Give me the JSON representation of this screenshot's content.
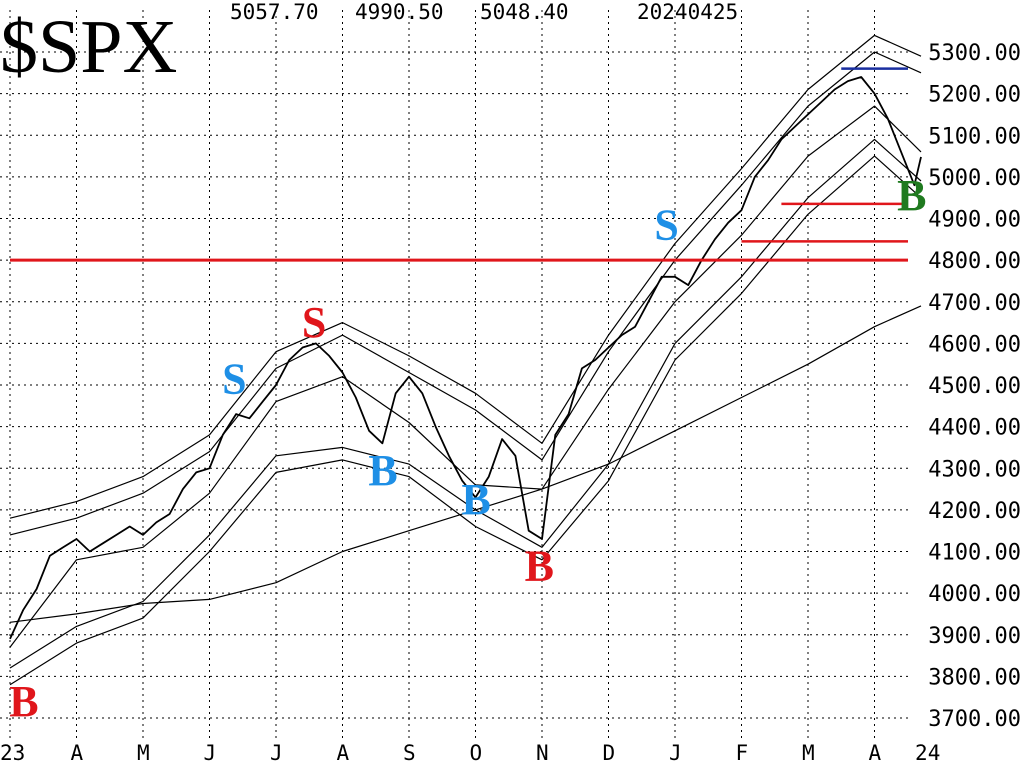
{
  "header": {
    "symbol": "$SPX",
    "high": "5057.70",
    "low": "4990.50",
    "close": "5048.40",
    "date": "20240425"
  },
  "colors": {
    "price": "#000000",
    "grid": "#000000",
    "red_line": "#e0161b",
    "blue_line": "#1a2fa0",
    "signal_red": "#e0161b",
    "signal_blue": "#1e8fe6",
    "signal_green": "#1f7a1f"
  },
  "chart_data": {
    "type": "line",
    "y_tick_labels": [
      "5300.00",
      "5200.00",
      "5100.00",
      "5000.00",
      "4900.00",
      "4800.00",
      "4700.00",
      "4600.00",
      "4500.00",
      "4400.00",
      "4300.00",
      "4200.00",
      "4100.00",
      "4000.00",
      "3900.00",
      "3800.00",
      "3700.00"
    ],
    "x_tick_labels": [
      "23",
      "A",
      "M",
      "J",
      "J",
      "A",
      "S",
      "O",
      "N",
      "D",
      "J",
      "F",
      "M",
      "A",
      "24"
    ],
    "ylim": [
      3660,
      5380
    ],
    "grid": true,
    "x_months": [
      0,
      1,
      2,
      3,
      4,
      5,
      6,
      7,
      8,
      9,
      10,
      11,
      12,
      13,
      13.7
    ],
    "series": [
      {
        "key": "price",
        "x": [
          0,
          0.2,
          0.4,
          0.6,
          0.8,
          1,
          1.2,
          1.4,
          1.6,
          1.8,
          2,
          2.2,
          2.4,
          2.6,
          2.8,
          3,
          3.2,
          3.4,
          3.6,
          3.8,
          4,
          4.2,
          4.4,
          4.6,
          4.8,
          5,
          5.2,
          5.4,
          5.6,
          5.8,
          6,
          6.2,
          6.4,
          6.6,
          6.8,
          7,
          7.2,
          7.4,
          7.6,
          7.8,
          8,
          8.2,
          8.4,
          8.6,
          8.8,
          9,
          9.2,
          9.4,
          9.6,
          9.8,
          10,
          10.2,
          10.4,
          10.6,
          10.8,
          11,
          11.2,
          11.4,
          11.6,
          11.8,
          12,
          12.2,
          12.4,
          12.6,
          12.8,
          13,
          13.2,
          13.4,
          13.6,
          13.7
        ],
        "values": [
          3890,
          3960,
          4010,
          4090,
          4110,
          4130,
          4100,
          4120,
          4140,
          4160,
          4140,
          4170,
          4190,
          4250,
          4290,
          4300,
          4380,
          4430,
          4420,
          4460,
          4500,
          4560,
          4590,
          4600,
          4570,
          4530,
          4470,
          4390,
          4360,
          4480,
          4520,
          4480,
          4400,
          4330,
          4270,
          4230,
          4280,
          4370,
          4330,
          4150,
          4130,
          4380,
          4430,
          4540,
          4560,
          4590,
          4620,
          4640,
          4700,
          4760,
          4760,
          4740,
          4800,
          4850,
          4890,
          4920,
          5000,
          5040,
          5090,
          5120,
          5150,
          5180,
          5210,
          5230,
          5240,
          5200,
          5140,
          5060,
          4980,
          5048
        ]
      },
      {
        "key": "ma_long",
        "x": [
          0,
          1,
          2,
          3,
          4,
          5,
          6,
          7,
          8,
          9,
          10,
          11,
          12,
          13,
          13.7
        ],
        "values": [
          3930,
          3950,
          3975,
          3985,
          4025,
          4100,
          4150,
          4200,
          4250,
          4310,
          4390,
          4470,
          4550,
          4640,
          4690
        ]
      },
      {
        "key": "ma_mid",
        "x": [
          0,
          1,
          2,
          3,
          4,
          5,
          6,
          7,
          8,
          9,
          10,
          11,
          12,
          13,
          13.7
        ],
        "values": [
          3870,
          4080,
          4110,
          4240,
          4460,
          4520,
          4410,
          4260,
          4250,
          4490,
          4700,
          4860,
          5050,
          5170,
          5060
        ]
      },
      {
        "key": "band_u1",
        "x": [
          0,
          1,
          2,
          3,
          4,
          5,
          6,
          7,
          8,
          9,
          10,
          11,
          12,
          13,
          13.7
        ],
        "values": [
          4140,
          4180,
          4240,
          4340,
          4540,
          4620,
          4530,
          4440,
          4320,
          4580,
          4800,
          4980,
          5170,
          5300,
          5250
        ]
      },
      {
        "key": "band_u2",
        "x": [
          0,
          1,
          2,
          3,
          4,
          5,
          6,
          7,
          8,
          9,
          10,
          11,
          12,
          13,
          13.7
        ],
        "values": [
          4180,
          4220,
          4280,
          4380,
          4580,
          4650,
          4570,
          4480,
          4360,
          4620,
          4840,
          5020,
          5210,
          5340,
          5290
        ]
      },
      {
        "key": "band_l1",
        "x": [
          0,
          1,
          2,
          3,
          4,
          5,
          6,
          7,
          8,
          9,
          10,
          11,
          12,
          13,
          13.7
        ],
        "values": [
          3820,
          3920,
          3980,
          4140,
          4330,
          4350,
          4310,
          4200,
          4110,
          4310,
          4600,
          4760,
          4950,
          5090,
          4990
        ]
      },
      {
        "key": "band_l2",
        "x": [
          0,
          1,
          2,
          3,
          4,
          5,
          6,
          7,
          8,
          9,
          10,
          11,
          12,
          13,
          13.7
        ],
        "values": [
          3780,
          3880,
          3940,
          4100,
          4290,
          4320,
          4280,
          4160,
          4080,
          4270,
          4560,
          4720,
          4910,
          5050,
          4950
        ]
      }
    ],
    "horizontal_lines": [
      {
        "color_key": "red_line",
        "y": 4800,
        "x_from": 0,
        "x_to": 13.8,
        "width": 3
      },
      {
        "color_key": "blue_line",
        "y": 5260,
        "x_from": 12.5,
        "x_to": 13.8,
        "width": 2.5
      },
      {
        "color_key": "red_line",
        "y": 4935,
        "x_from": 11.6,
        "x_to": 13.8,
        "width": 2.5
      },
      {
        "color_key": "red_line",
        "y": 4845,
        "x_from": 11.0,
        "x_to": 13.8,
        "width": 2.5
      }
    ],
    "annotations": [
      {
        "text": "B",
        "x": 0.2,
        "y": 3705,
        "color_key": "signal_red"
      },
      {
        "text": "S",
        "x": 3.4,
        "y": 4480,
        "color_key": "signal_blue"
      },
      {
        "text": "S",
        "x": 4.6,
        "y": 4615,
        "color_key": "signal_red"
      },
      {
        "text": "B",
        "x": 5.6,
        "y": 4260,
        "color_key": "signal_blue"
      },
      {
        "text": "B",
        "x": 7.0,
        "y": 4190,
        "color_key": "signal_blue"
      },
      {
        "text": "B",
        "x": 7.95,
        "y": 4030,
        "color_key": "signal_red"
      },
      {
        "text": "S",
        "x": 9.9,
        "y": 4850,
        "color_key": "signal_blue"
      },
      {
        "text": "B",
        "x": 13.55,
        "y": 4920,
        "color_key": "signal_green"
      }
    ]
  }
}
